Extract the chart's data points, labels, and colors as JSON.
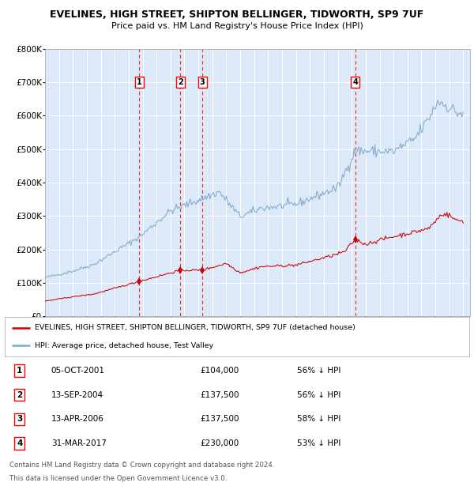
{
  "title1": "EVELINES, HIGH STREET, SHIPTON BELLINGER, TIDWORTH, SP9 7UF",
  "title2": "Price paid vs. HM Land Registry's House Price Index (HPI)",
  "legend_red": "EVELINES, HIGH STREET, SHIPTON BELLINGER, TIDWORTH, SP9 7UF (detached house)",
  "legend_blue": "HPI: Average price, detached house, Test Valley",
  "footer1": "Contains HM Land Registry data © Crown copyright and database right 2024.",
  "footer2": "This data is licensed under the Open Government Licence v3.0.",
  "plot_bg": "#dce9f8",
  "red_color": "#cc0000",
  "blue_color": "#7faacc",
  "transactions": [
    {
      "num": 1,
      "date": "05-OCT-2001",
      "date_x": 2001.76,
      "price": 104000,
      "hpi_pct": "56% ↓ HPI"
    },
    {
      "num": 2,
      "date": "13-SEP-2004",
      "date_x": 2004.7,
      "price": 137500,
      "hpi_pct": "56% ↓ HPI"
    },
    {
      "num": 3,
      "date": "13-APR-2006",
      "date_x": 2006.28,
      "price": 137500,
      "hpi_pct": "58% ↓ HPI"
    },
    {
      "num": 4,
      "date": "31-MAR-2017",
      "date_x": 2017.25,
      "price": 230000,
      "hpi_pct": "53% ↓ HPI"
    }
  ],
  "ylim": [
    0,
    800000
  ],
  "yticks": [
    0,
    100000,
    200000,
    300000,
    400000,
    500000,
    600000,
    700000,
    800000
  ],
  "xlim": [
    1995,
    2025.5
  ],
  "xticks": [
    1995,
    1996,
    1997,
    1998,
    1999,
    2000,
    2001,
    2002,
    2003,
    2004,
    2005,
    2006,
    2007,
    2008,
    2009,
    2010,
    2011,
    2012,
    2013,
    2014,
    2015,
    2016,
    2017,
    2018,
    2019,
    2020,
    2021,
    2022,
    2023,
    2024,
    2025
  ],
  "hpi_anchors": {
    "1995.0": 115000,
    "1997.0": 135000,
    "1998.5": 155000,
    "2001.75": 237000,
    "2004.0": 315000,
    "2007.5": 372000,
    "2009.0": 298000,
    "2010.5": 323000,
    "2013.0": 335000,
    "2016.0": 385000,
    "2017.25": 495000,
    "2020.0": 493000,
    "2021.5": 530000,
    "2022.5": 590000,
    "2023.2": 645000,
    "2024.0": 625000,
    "2024.5": 610000,
    "2025.0": 605000
  },
  "red_anchors": {
    "1995.0": 45000,
    "1997.0": 58000,
    "1998.5": 66000,
    "2001.76": 104000,
    "2004.70": 137500,
    "2006.28": 137500,
    "2008.0": 158000,
    "2009.0": 130000,
    "2010.5": 148000,
    "2013.0": 153000,
    "2015.5": 180000,
    "2016.5": 193000,
    "2017.25": 230000,
    "2018.0": 215000,
    "2019.0": 228000,
    "2020.0": 238000,
    "2021.5": 252000,
    "2022.5": 262000,
    "2023.5": 307000,
    "2024.0": 302000,
    "2024.5": 287000,
    "2025.0": 285000
  }
}
